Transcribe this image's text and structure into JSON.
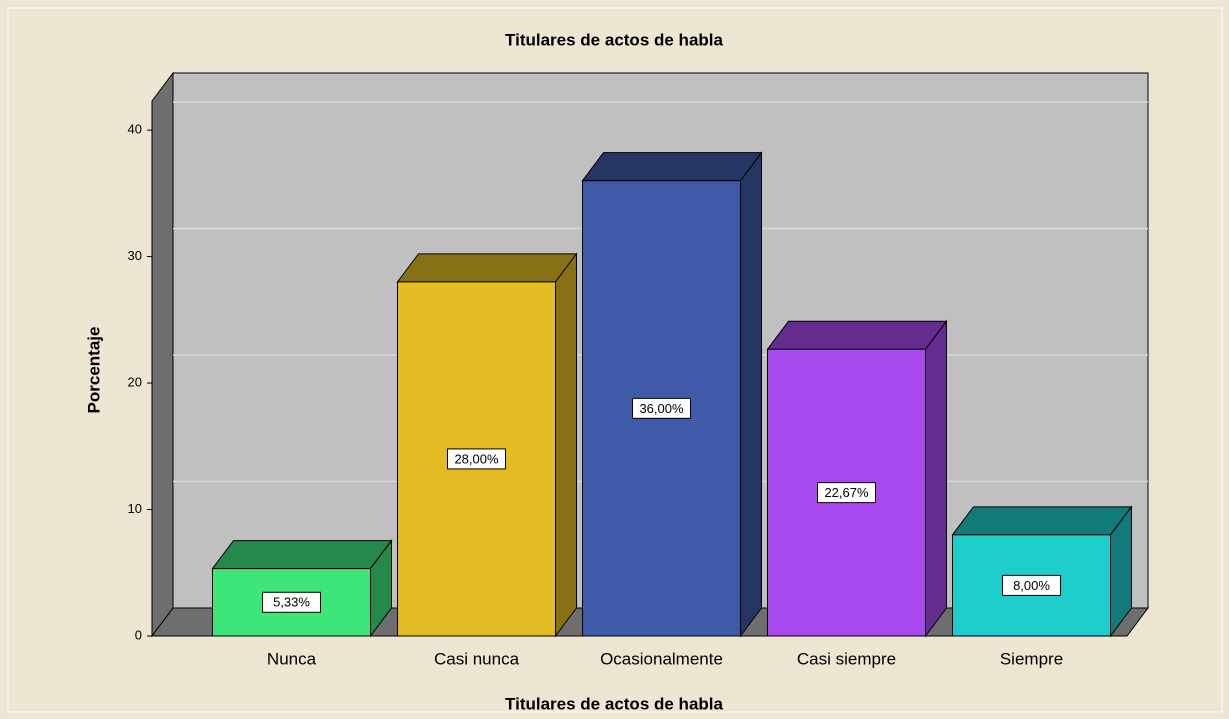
{
  "chart_data": {
    "type": "bar3d",
    "title": "Titulares de actos de habla",
    "x_label": "Titulares de actos de habla",
    "y_label": "Porcentaje",
    "categories": [
      "Nunca",
      "Casi nunca",
      "Ocasionalmente",
      "Casi siempre",
      "Siempre"
    ],
    "values": [
      5.33,
      28,
      36,
      22.67,
      8
    ],
    "value_labels": [
      "5,33%",
      "28,00%",
      "36,00%",
      "22,67%",
      "8,00%"
    ],
    "colors": [
      "#3ee67a",
      "#e2bc22",
      "#3e5aa8",
      "#a94af0",
      "#1ccdcc"
    ],
    "ylim": [
      0,
      42.3
    ],
    "yticks": [
      0,
      10,
      20,
      30,
      40
    ],
    "grid": true
  }
}
